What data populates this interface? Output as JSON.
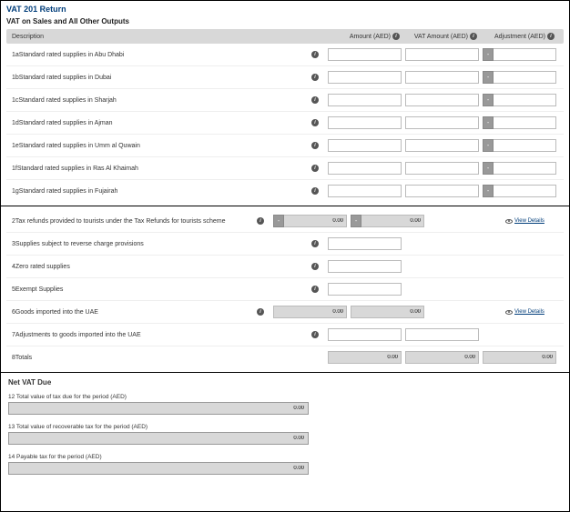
{
  "main_title": "VAT 201 Return",
  "section1_title": "VAT on Sales and All Other Outputs",
  "headers": {
    "desc": "Description",
    "amount": "Amount (AED)",
    "vat": "VAT Amount (AED)",
    "adj": "Adjustment (AED)"
  },
  "view_details": "View Details",
  "minus": "-",
  "rows1": [
    {
      "label": "1aStandard rated supplies in Abu Dhabi"
    },
    {
      "label": "1bStandard rated supplies in Dubai"
    },
    {
      "label": "1cStandard rated supplies in Sharjah"
    },
    {
      "label": "1dStandard rated supplies in Ajman"
    },
    {
      "label": "1eStandard rated supplies in Umm al Quwain"
    },
    {
      "label": "1fStandard rated supplies in Ras Al Khaimah"
    },
    {
      "label": "1gStandard rated supplies in Fujairah"
    }
  ],
  "rows2": [
    {
      "label": "2Tax refunds provided to tourists under the Tax Refunds for tourists scheme",
      "amt_ro": true,
      "amt_val": "0.00",
      "vat_ro": true,
      "vat_val": "0.00",
      "amt_toggle": true,
      "vat_toggle": true,
      "view": true
    },
    {
      "label": "3Supplies subject to reverse charge provisions",
      "amount_only": true
    },
    {
      "label": "4Zero rated supplies",
      "amount_only": true
    },
    {
      "label": "5Exempt Supplies",
      "amount_only": true
    },
    {
      "label": "6Goods imported into the UAE",
      "amt_ro": true,
      "amt_val": "0.00",
      "vat_ro": true,
      "vat_val": "0.00",
      "view": true
    },
    {
      "label": "7Adjustments to goods imported into the UAE"
    },
    {
      "label": "8Totals",
      "amt_ro": true,
      "amt_val": "0.00",
      "vat_ro": true,
      "vat_val": "0.00",
      "adj_ro": true,
      "adj_val": "0.00",
      "no_info": true
    }
  ],
  "net": {
    "title": "Net VAT Due",
    "rows": [
      {
        "label": "12 Total value of tax due for the period (AED)",
        "val": "0.00"
      },
      {
        "label": "13 Total value of recoverable tax for the period (AED)",
        "val": "0.00"
      },
      {
        "label": "14 Payable tax for the period (AED)",
        "val": "0.00"
      }
    ]
  }
}
